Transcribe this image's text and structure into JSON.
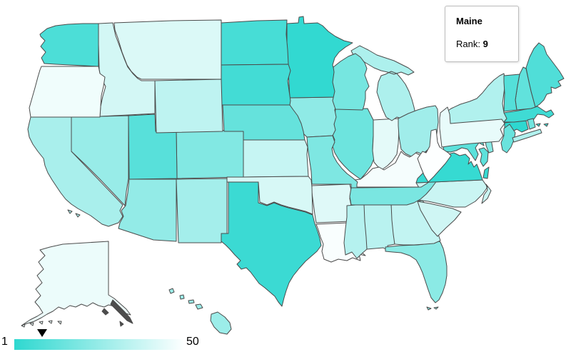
{
  "tooltip": {
    "state": "Maine",
    "rank_label": "Rank:",
    "rank_value": "9"
  },
  "legend": {
    "min_label": "1",
    "max_label": "50",
    "marker_rank": 9
  },
  "colors": {
    "scale_start": "#2ED8D0",
    "scale_end": "#FDFFFF",
    "stroke": "#4b4b4b",
    "decor_fill": "#4d4d4d",
    "background": "#ffffff"
  },
  "chart_data": {
    "type": "heatmap",
    "subtype": "us-choropleth-rank-map",
    "title": "",
    "legend": {
      "min": 1,
      "max": 50,
      "position": "bottom-left",
      "orientation": "horizontal"
    },
    "highlighted": {
      "state": "Maine",
      "rank": 9
    },
    "note": "Fill encodes rank 1 (dark teal) to 50 (white); only Maine's rank is labeled on screen, other ranks estimated from fill color",
    "states": [
      {
        "abbr": "AL",
        "name": "Alabama",
        "rank": 34
      },
      {
        "abbr": "AK",
        "name": "Alaska",
        "rank": 46
      },
      {
        "abbr": "AZ",
        "name": "Arizona",
        "rank": 25
      },
      {
        "abbr": "AR",
        "name": "Arkansas",
        "rank": 43
      },
      {
        "abbr": "CA",
        "name": "California",
        "rank": 30
      },
      {
        "abbr": "CO",
        "name": "Colorado",
        "rank": 21
      },
      {
        "abbr": "CT",
        "name": "Connecticut",
        "rank": 1
      },
      {
        "abbr": "DE",
        "name": "Delaware",
        "rank": 22
      },
      {
        "abbr": "FL",
        "name": "Florida",
        "rank": 23
      },
      {
        "abbr": "GA",
        "name": "Georgia",
        "rank": 36
      },
      {
        "abbr": "HI",
        "name": "Hawaii",
        "rank": 27
      },
      {
        "abbr": "ID",
        "name": "Idaho",
        "rank": 40
      },
      {
        "abbr": "IL",
        "name": "Illinois",
        "rank": 16
      },
      {
        "abbr": "IN",
        "name": "Indiana",
        "rank": 44
      },
      {
        "abbr": "IA",
        "name": "Iowa",
        "rank": 24
      },
      {
        "abbr": "KS",
        "name": "Kansas",
        "rank": 37
      },
      {
        "abbr": "KY",
        "name": "Kentucky",
        "rank": 48
      },
      {
        "abbr": "LA",
        "name": "Louisiana",
        "rank": 49
      },
      {
        "abbr": "ME",
        "name": "Maine",
        "rank": 9
      },
      {
        "abbr": "MD",
        "name": "Maryland",
        "rank": 12
      },
      {
        "abbr": "MA",
        "name": "Massachusetts",
        "rank": 5
      },
      {
        "abbr": "MI",
        "name": "Michigan",
        "rank": 31
      },
      {
        "abbr": "MN",
        "name": "Minnesota",
        "rank": 2
      },
      {
        "abbr": "MS",
        "name": "Mississippi",
        "rank": 33
      },
      {
        "abbr": "MO",
        "name": "Missouri",
        "rank": 20
      },
      {
        "abbr": "MT",
        "name": "Montana",
        "rank": 42
      },
      {
        "abbr": "NE",
        "name": "Nebraska",
        "rank": 14
      },
      {
        "abbr": "NV",
        "name": "Nevada",
        "rank": 26
      },
      {
        "abbr": "NH",
        "name": "New Hampshire",
        "rank": 13
      },
      {
        "abbr": "NJ",
        "name": "New Jersey",
        "rank": 15
      },
      {
        "abbr": "NM",
        "name": "New Mexico",
        "rank": 29
      },
      {
        "abbr": "NY",
        "name": "New York",
        "rank": 32
      },
      {
        "abbr": "NC",
        "name": "North Carolina",
        "rank": 38
      },
      {
        "abbr": "ND",
        "name": "North Dakota",
        "rank": 7
      },
      {
        "abbr": "OH",
        "name": "Ohio",
        "rank": 28
      },
      {
        "abbr": "OK",
        "name": "Oklahoma",
        "rank": 41
      },
      {
        "abbr": "OR",
        "name": "Oregon",
        "rank": 47
      },
      {
        "abbr": "PA",
        "name": "Pennsylvania",
        "rank": 45
      },
      {
        "abbr": "RI",
        "name": "Rhode Island",
        "rank": 17
      },
      {
        "abbr": "SC",
        "name": "South Carolina",
        "rank": 39
      },
      {
        "abbr": "SD",
        "name": "South Dakota",
        "rank": 6
      },
      {
        "abbr": "TN",
        "name": "Tennessee",
        "rank": 19
      },
      {
        "abbr": "TX",
        "name": "Texas",
        "rank": 4
      },
      {
        "abbr": "UT",
        "name": "Utah",
        "rank": 11
      },
      {
        "abbr": "VT",
        "name": "Vermont",
        "rank": 10
      },
      {
        "abbr": "VA",
        "name": "Virginia",
        "rank": 3
      },
      {
        "abbr": "WA",
        "name": "Washington",
        "rank": 8
      },
      {
        "abbr": "WV",
        "name": "West Virginia",
        "rank": 50
      },
      {
        "abbr": "WI",
        "name": "Wisconsin",
        "rank": 18
      },
      {
        "abbr": "WY",
        "name": "Wyoming",
        "rank": 35
      }
    ]
  }
}
